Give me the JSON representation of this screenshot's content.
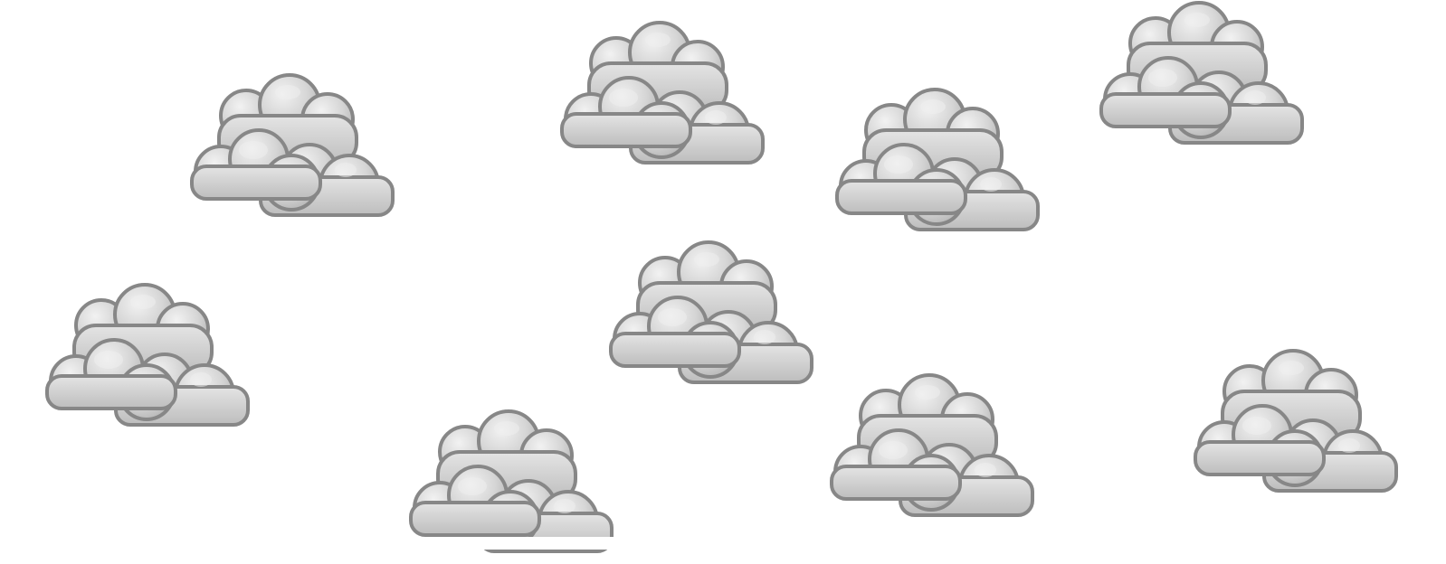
{
  "scene": {
    "background_color": "#ffffff",
    "cloud_fill_color": "#cfcfcf",
    "cloud_highlight_color": "#e6e6e6",
    "cloud_outline_color": "#878787",
    "cloud_icon": "overcast-cloud-icon",
    "cloud_count": 9
  }
}
